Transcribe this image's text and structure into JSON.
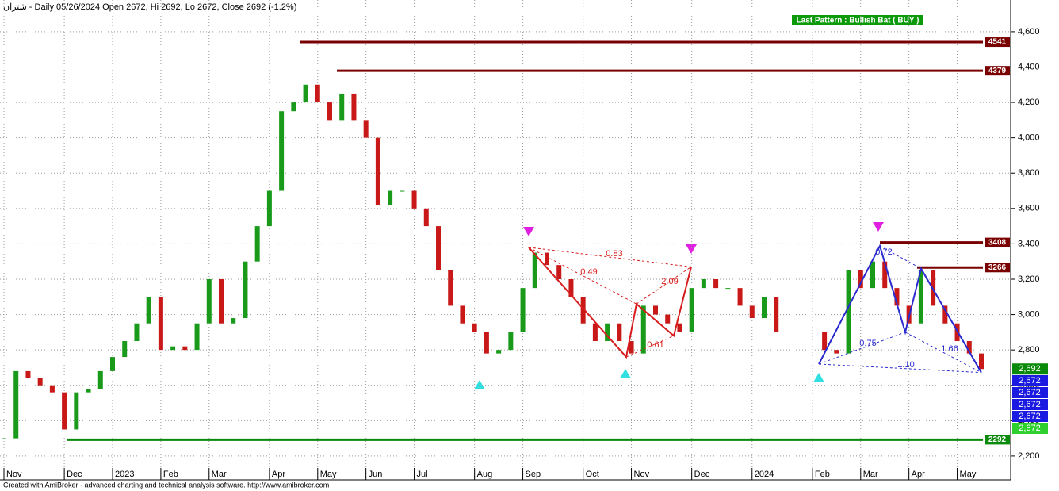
{
  "chart_data": {
    "type": "candle",
    "title": "شتران - Daily 05/26/2024 Open 2672, Hi 2692, Lo 2672, Close 2692 (-1.2%)",
    "pattern_label": "Last Pattern : Bullish Bat ( BUY )",
    "footer": "Created with AmiBroker - advanced charting and technical analysis software. http://www.amibroker.com",
    "categories": [
      "Nov",
      null,
      null,
      null,
      null,
      "Dec",
      null,
      null,
      null,
      "2023",
      null,
      null,
      null,
      "Feb",
      null,
      null,
      null,
      "Mar",
      null,
      null,
      null,
      null,
      "Apr",
      null,
      null,
      null,
      "May",
      null,
      null,
      null,
      "Jun",
      null,
      null,
      null,
      "Jul",
      null,
      null,
      null,
      null,
      "Aug",
      null,
      null,
      null,
      "Sep",
      null,
      null,
      null,
      null,
      "Oct",
      null,
      null,
      null,
      "Nov",
      null,
      null,
      null,
      null,
      "Dec",
      null,
      null,
      null,
      null,
      "2024",
      null,
      null,
      null,
      null,
      "Feb",
      null,
      null,
      null,
      "Mar",
      null,
      null,
      null,
      "Apr",
      null,
      null,
      null,
      "May",
      null,
      null
    ],
    "values": [
      2300,
      2680,
      2640,
      2600,
      2560,
      2350,
      2560,
      2580,
      2680,
      2760,
      2850,
      2950,
      3100,
      2800,
      2820,
      2800,
      2950,
      3200,
      2950,
      2980,
      3300,
      3500,
      3700,
      4150,
      4200,
      4300,
      4200,
      4100,
      4250,
      4100,
      4000,
      3620,
      3700,
      3700,
      3600,
      3500,
      3250,
      3050,
      2950,
      2900,
      2780,
      2800,
      2900,
      3150,
      3350,
      3280,
      3200,
      3100,
      2950,
      2850,
      2950,
      2850,
      2780,
      3050,
      3000,
      2950,
      2900,
      3150,
      3200,
      3150,
      3150,
      3050,
      2980,
      3100,
      2900,
      null,
      null,
      null,
      2800,
      2780,
      3250,
      3150,
      3300,
      3150,
      3050,
      2950,
      3250,
      3050,
      2950,
      2850,
      2780,
      2692
    ],
    "up_color": "#1a9a1a",
    "down_color": "#c81818",
    "ylim": [
      2065,
      4779
    ],
    "yticks": [
      {
        "value": 2200,
        "label": "2,200"
      },
      {
        "value": 2400,
        "label": "2,400"
      },
      {
        "value": 2600,
        "label": "2,600"
      },
      {
        "value": 2800,
        "label": "2,800"
      },
      {
        "value": 3000,
        "label": "3,000"
      },
      {
        "value": 3200,
        "label": "3,200"
      },
      {
        "value": 3400,
        "label": "3,400"
      },
      {
        "value": 3600,
        "label": "3,600"
      },
      {
        "value": 3800,
        "label": "3,800"
      },
      {
        "value": 4000,
        "label": "4,000"
      },
      {
        "value": 4200,
        "label": "4,200"
      },
      {
        "value": 4400,
        "label": "4,400"
      },
      {
        "value": 4600,
        "label": "4,600"
      }
    ],
    "grid": true,
    "levels": [
      {
        "value": 4541,
        "color": "#7a0000"
      },
      {
        "value": 4379,
        "color": "#7a0000"
      },
      {
        "value": 3408,
        "color": "#7a0000"
      },
      {
        "value": 3266,
        "color": "#7a0000"
      },
      {
        "value": 2292,
        "color": "#0a8a0a"
      }
    ],
    "patterns": [
      {
        "color": "#d81c1c",
        "points": [
          3380,
          2760,
          3060,
          2880,
          3270
        ],
        "ratios": [
          "0.83",
          "0.49",
          "2.09",
          "0.61"
        ]
      },
      {
        "color": "#2a2ad0",
        "points": [
          2720,
          3388,
          2900,
          3260,
          2672
        ],
        "ratios": [
          "0.72",
          "0.75",
          "1.66",
          "1.10"
        ]
      }
    ],
    "price_tags": [
      {
        "value": 2692,
        "label": "2,692",
        "color": "#0a8a0a"
      },
      {
        "value": 2672,
        "label": "2,672",
        "color": "#1a1ae0"
      },
      {
        "value": 2672,
        "label": "2,672",
        "color": "#1a1ae0"
      },
      {
        "value": 2672,
        "label": "2,672",
        "color": "#1a1ae0"
      },
      {
        "value": 2672,
        "label": "2,672",
        "color": "#1a1ae0"
      },
      {
        "value": 2672,
        "label": "2,672",
        "color": "#2ed02e"
      }
    ]
  }
}
